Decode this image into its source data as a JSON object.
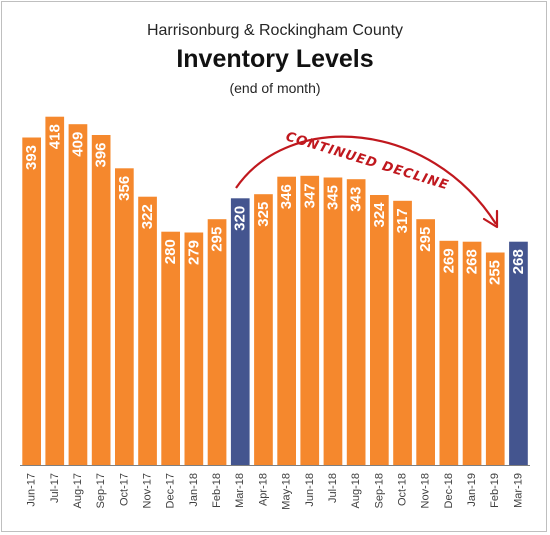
{
  "chart_data": {
    "type": "bar",
    "subtitle": "Harrisonburg & Rockingham County",
    "title": "Inventory Levels",
    "note": "(end of month)",
    "categories": [
      "Jun-17",
      "Jul-17",
      "Aug-17",
      "Sep-17",
      "Oct-17",
      "Nov-17",
      "Dec-17",
      "Jan-18",
      "Feb-18",
      "Mar-18",
      "Apr-18",
      "May-18",
      "Jun-18",
      "Jul-18",
      "Aug-18",
      "Sep-18",
      "Oct-18",
      "Nov-18",
      "Dec-18",
      "Jan-19",
      "Feb-19",
      "Mar-19"
    ],
    "values": [
      393,
      418,
      409,
      396,
      356,
      322,
      280,
      279,
      295,
      320,
      325,
      346,
      347,
      345,
      343,
      324,
      317,
      295,
      269,
      268,
      255,
      268
    ],
    "highlight": [
      "Mar-18",
      "Mar-19"
    ],
    "ylim": [
      0,
      420
    ],
    "grid": false,
    "annotation": "CONTINUED DECLINE",
    "colors": {
      "bar": "#f5882d",
      "highlight": "#44558f",
      "label": "#ffffff",
      "annotation": "#c0181e",
      "axis": "#7f7f7f"
    }
  }
}
